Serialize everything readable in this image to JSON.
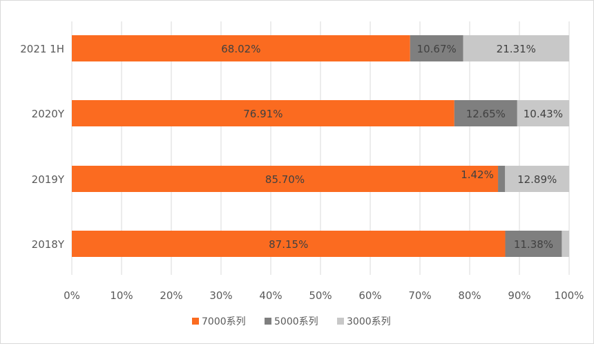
{
  "chart_data": {
    "type": "bar",
    "orientation": "horizontal",
    "stacked": true,
    "percent_stacked": true,
    "categories": [
      "2021 1H",
      "2020Y",
      "2019Y",
      "2018Y"
    ],
    "series": [
      {
        "name": "7000系列",
        "color": "#fb6b20",
        "values": [
          68.02,
          76.91,
          85.7,
          87.15
        ],
        "labels": [
          "68.02%",
          "76.91%",
          "85.70%",
          "87.15%"
        ]
      },
      {
        "name": "5000系列",
        "color": "#7f7f7f",
        "values": [
          10.67,
          12.65,
          1.42,
          11.38
        ],
        "labels": [
          "10.67%",
          "12.65%",
          "1.42%",
          "11.38%"
        ]
      },
      {
        "name": "3000系列",
        "color": "#c8c8c8",
        "values": [
          21.31,
          10.43,
          12.89,
          1.47
        ],
        "labels": [
          "21.31%",
          "10.43%",
          "12.89%",
          ""
        ]
      }
    ],
    "x_ticks": [
      "0%",
      "10%",
      "20%",
      "30%",
      "40%",
      "50%",
      "60%",
      "70%",
      "80%",
      "90%",
      "100%"
    ],
    "xlim": [
      0,
      100
    ],
    "grid": "vertical",
    "legend_position": "bottom"
  }
}
